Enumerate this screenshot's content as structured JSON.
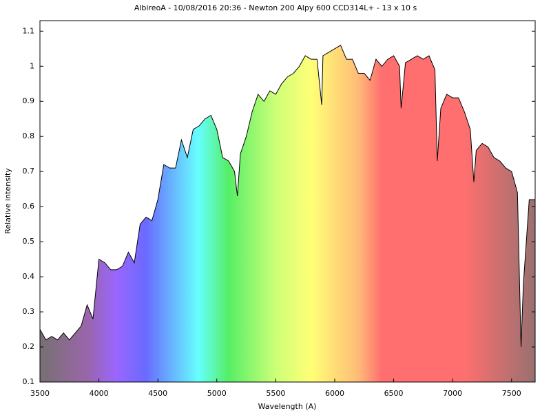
{
  "chart_data": {
    "type": "line",
    "title": "AlbireoA - 10/08/2016 20:36 - Newton 200 Alpy 600 CCD314L+ - 13 x 10 s",
    "x_label": "Wavelength (A)",
    "y_label": "Relative intensity",
    "x": [
      3500,
      3550,
      3600,
      3650,
      3700,
      3750,
      3800,
      3850,
      3900,
      3950,
      4000,
      4050,
      4100,
      4150,
      4200,
      4250,
      4300,
      4350,
      4400,
      4450,
      4500,
      4550,
      4600,
      4650,
      4700,
      4750,
      4800,
      4850,
      4900,
      4950,
      5000,
      5050,
      5100,
      5150,
      5175,
      5200,
      5250,
      5300,
      5350,
      5400,
      5450,
      5500,
      5550,
      5600,
      5650,
      5700,
      5750,
      5800,
      5850,
      5890,
      5900,
      5950,
      6000,
      6050,
      6100,
      6150,
      6200,
      6250,
      6300,
      6350,
      6400,
      6450,
      6500,
      6550,
      6563,
      6600,
      6650,
      6700,
      6750,
      6800,
      6850,
      6870,
      6900,
      6950,
      7000,
      7050,
      7100,
      7150,
      7180,
      7200,
      7250,
      7300,
      7350,
      7400,
      7450,
      7500,
      7550,
      7580,
      7600,
      7650,
      7700
    ],
    "series": [
      {
        "name": "AlbireoA",
        "color": "#000000",
        "values": [
          0.25,
          0.22,
          0.23,
          0.22,
          0.24,
          0.22,
          0.24,
          0.26,
          0.32,
          0.28,
          0.45,
          0.44,
          0.42,
          0.42,
          0.43,
          0.47,
          0.44,
          0.55,
          0.57,
          0.56,
          0.62,
          0.72,
          0.71,
          0.71,
          0.79,
          0.74,
          0.82,
          0.83,
          0.85,
          0.86,
          0.82,
          0.74,
          0.73,
          0.7,
          0.63,
          0.75,
          0.8,
          0.87,
          0.92,
          0.9,
          0.93,
          0.92,
          0.95,
          0.97,
          0.98,
          1.0,
          1.03,
          1.02,
          1.02,
          0.89,
          1.03,
          1.04,
          1.05,
          1.06,
          1.02,
          1.02,
          0.98,
          0.98,
          0.96,
          1.02,
          1.0,
          1.02,
          1.03,
          1.0,
          0.88,
          1.01,
          1.02,
          1.03,
          1.02,
          1.03,
          0.99,
          0.73,
          0.88,
          0.92,
          0.91,
          0.91,
          0.87,
          0.82,
          0.67,
          0.76,
          0.78,
          0.77,
          0.74,
          0.73,
          0.71,
          0.7,
          0.64,
          0.2,
          0.38,
          0.62,
          0.62
        ]
      }
    ],
    "xlim": [
      3500,
      7700
    ],
    "xticks": [
      3500,
      4000,
      4500,
      5000,
      5500,
      6000,
      6500,
      7000,
      7500
    ],
    "ylim": [
      0.1,
      1.13
    ],
    "yticks": [
      0.1,
      0.2,
      0.3,
      0.4,
      0.5,
      0.6,
      0.7,
      0.8,
      0.9,
      1,
      1.1
    ]
  }
}
